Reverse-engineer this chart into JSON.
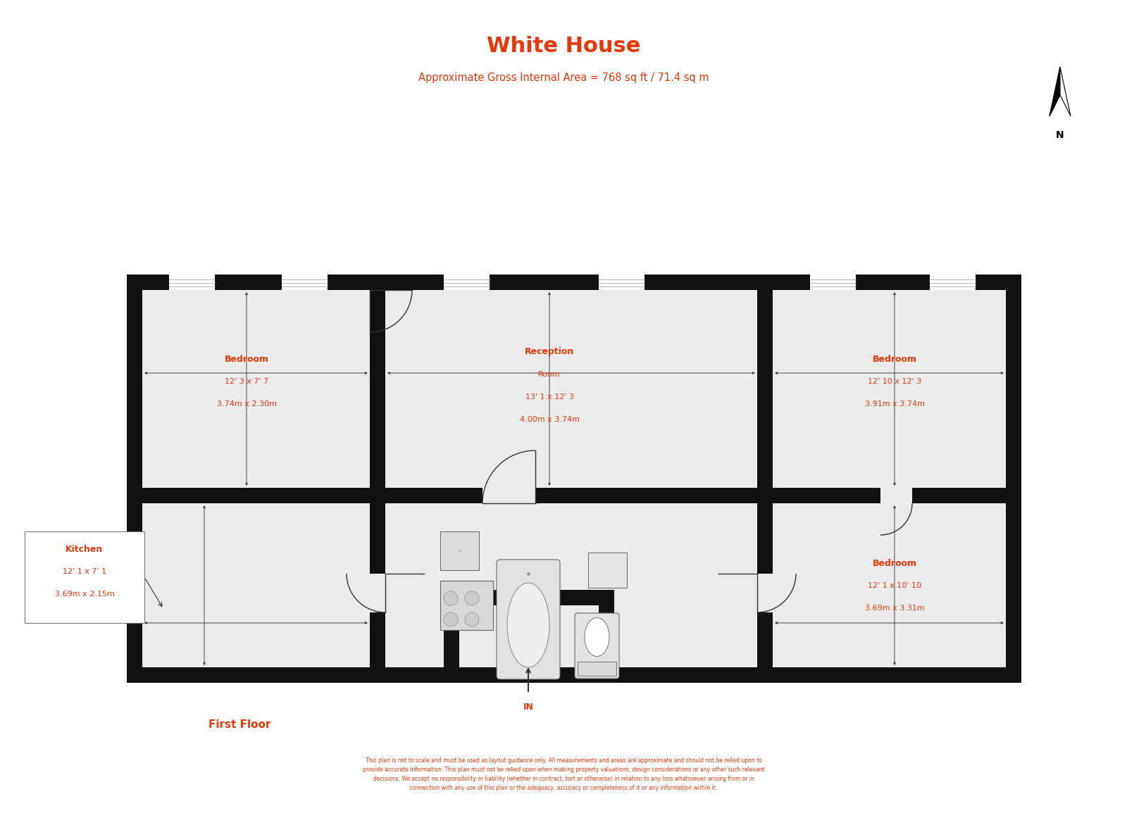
{
  "title": "White House",
  "subtitle": "Approximate Gross Internal Area = 768 sq ft / 71.4 sq m",
  "floor_label": "First Floor",
  "title_color": "#e8380a",
  "wall_color": "#111111",
  "room_fill": "#ebebeb",
  "disclaimer": "This plan is not to scale and must be used as layout guidance only. All measurements and areas are approximate and should not be relied upon to\nprovide accurate information. This plan must not be relied upon when making property valuations, design considerations or any other such relevant\ndecisions. We accept no responsibility or liability (whether in contract, tort or otherwise) in relation to any loss whatsoever arising from or in\nconnection with any use of this plan or the adequacy, accuracy or completeness of it or any information within it."
}
